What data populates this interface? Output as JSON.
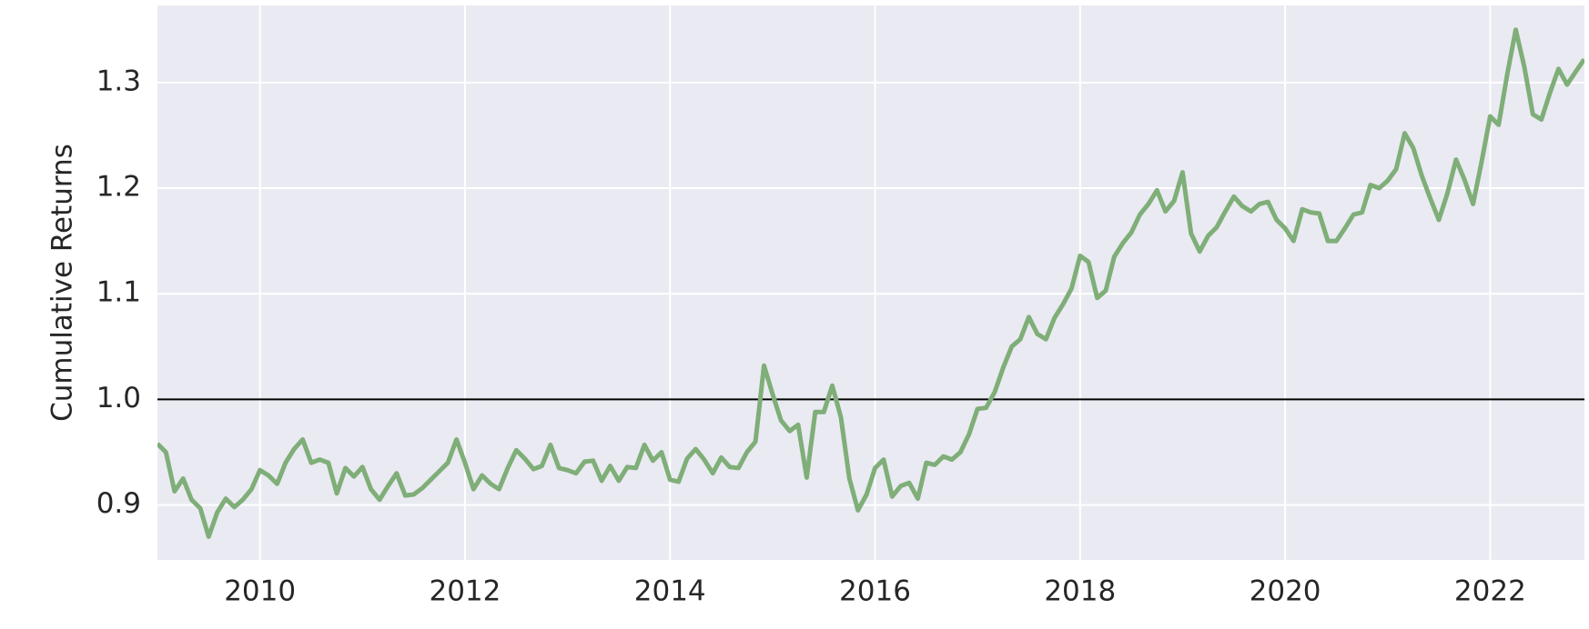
{
  "chart_data": {
    "type": "line",
    "y_label": "Cumulative Returns",
    "x": [
      2009.0,
      2009.083,
      2009.167,
      2009.25,
      2009.333,
      2009.417,
      2009.5,
      2009.583,
      2009.667,
      2009.75,
      2009.833,
      2009.917,
      2010.0,
      2010.083,
      2010.167,
      2010.25,
      2010.333,
      2010.417,
      2010.5,
      2010.583,
      2010.667,
      2010.75,
      2010.833,
      2010.917,
      2011.0,
      2011.083,
      2011.167,
      2011.25,
      2011.333,
      2011.417,
      2011.5,
      2011.583,
      2011.667,
      2011.75,
      2011.833,
      2011.917,
      2012.0,
      2012.083,
      2012.167,
      2012.25,
      2012.333,
      2012.417,
      2012.5,
      2012.583,
      2012.667,
      2012.75,
      2012.833,
      2012.917,
      2013.0,
      2013.083,
      2013.167,
      2013.25,
      2013.333,
      2013.417,
      2013.5,
      2013.583,
      2013.667,
      2013.75,
      2013.833,
      2013.917,
      2014.0,
      2014.083,
      2014.167,
      2014.25,
      2014.333,
      2014.417,
      2014.5,
      2014.583,
      2014.667,
      2014.75,
      2014.833,
      2014.917,
      2015.0,
      2015.083,
      2015.167,
      2015.25,
      2015.333,
      2015.417,
      2015.5,
      2015.583,
      2015.667,
      2015.75,
      2015.833,
      2015.917,
      2016.0,
      2016.083,
      2016.167,
      2016.25,
      2016.333,
      2016.417,
      2016.5,
      2016.583,
      2016.667,
      2016.75,
      2016.833,
      2016.917,
      2017.0,
      2017.083,
      2017.167,
      2017.25,
      2017.333,
      2017.417,
      2017.5,
      2017.583,
      2017.667,
      2017.75,
      2017.833,
      2017.917,
      2018.0,
      2018.083,
      2018.167,
      2018.25,
      2018.333,
      2018.417,
      2018.5,
      2018.583,
      2018.667,
      2018.75,
      2018.833,
      2018.917,
      2019.0,
      2019.083,
      2019.167,
      2019.25,
      2019.333,
      2019.417,
      2019.5,
      2019.583,
      2019.667,
      2019.75,
      2019.833,
      2019.917,
      2020.0,
      2020.083,
      2020.167,
      2020.25,
      2020.333,
      2020.417,
      2020.5,
      2020.583,
      2020.667,
      2020.75,
      2020.833,
      2020.917,
      2021.0,
      2021.083,
      2021.167,
      2021.25,
      2021.333,
      2021.417,
      2021.5,
      2021.583,
      2021.667,
      2021.75,
      2021.833,
      2021.917,
      2022.0,
      2022.083,
      2022.167,
      2022.25,
      2022.333,
      2022.417,
      2022.5,
      2022.583,
      2022.667,
      2022.75,
      2022.833,
      2022.917
    ],
    "series": [
      {
        "color": "#7fae78",
        "values": [
          0.958,
          0.95,
          0.913,
          0.925,
          0.905,
          0.897,
          0.87,
          0.893,
          0.906,
          0.898,
          0.905,
          0.915,
          0.933,
          0.928,
          0.92,
          0.94,
          0.953,
          0.962,
          0.94,
          0.943,
          0.94,
          0.911,
          0.935,
          0.927,
          0.936,
          0.915,
          0.905,
          0.918,
          0.93,
          0.909,
          0.91,
          0.916,
          0.924,
          0.932,
          0.94,
          0.962,
          0.94,
          0.915,
          0.928,
          0.92,
          0.915,
          0.935,
          0.952,
          0.944,
          0.934,
          0.937,
          0.957,
          0.935,
          0.933,
          0.93,
          0.941,
          0.942,
          0.923,
          0.937,
          0.923,
          0.936,
          0.935,
          0.957,
          0.942,
          0.95,
          0.924,
          0.922,
          0.944,
          0.953,
          0.943,
          0.93,
          0.945,
          0.936,
          0.935,
          0.95,
          0.96,
          1.032,
          1.005,
          0.98,
          0.97,
          0.976,
          0.926,
          0.988,
          0.988,
          1.013,
          0.983,
          0.925,
          0.895,
          0.91,
          0.935,
          0.943,
          0.908,
          0.918,
          0.921,
          0.906,
          0.94,
          0.938,
          0.946,
          0.943,
          0.95,
          0.967,
          0.991,
          0.992,
          1.007,
          1.03,
          1.05,
          1.057,
          1.078,
          1.062,
          1.057,
          1.077,
          1.09,
          1.105,
          1.136,
          1.13,
          1.096,
          1.103,
          1.135,
          1.148,
          1.158,
          1.175,
          1.185,
          1.198,
          1.178,
          1.188,
          1.215,
          1.157,
          1.14,
          1.155,
          1.163,
          1.178,
          1.192,
          1.183,
          1.178,
          1.185,
          1.187,
          1.17,
          1.162,
          1.15,
          1.18,
          1.177,
          1.176,
          1.15,
          1.15,
          1.162,
          1.175,
          1.177,
          1.203,
          1.2,
          1.207,
          1.218,
          1.252,
          1.238,
          1.212,
          1.19,
          1.17,
          1.195,
          1.227,
          1.208,
          1.185,
          1.225,
          1.268,
          1.26,
          1.308,
          1.35,
          1.315,
          1.27,
          1.265,
          1.29,
          1.313,
          1.298,
          1.31,
          1.322
        ]
      }
    ],
    "xlim": [
      2009.0,
      2022.92
    ],
    "xticks": [
      2010,
      2012,
      2014,
      2016,
      2018,
      2020,
      2022
    ],
    "ylim": [
      0.848,
      1.373
    ],
    "yticks": [
      0.9,
      {
        "value": 1,
        "label": "1.0"
      },
      1.1,
      1.2,
      1.3
    ],
    "hline": 1,
    "grid": true,
    "background": "#eaeaf2"
  }
}
